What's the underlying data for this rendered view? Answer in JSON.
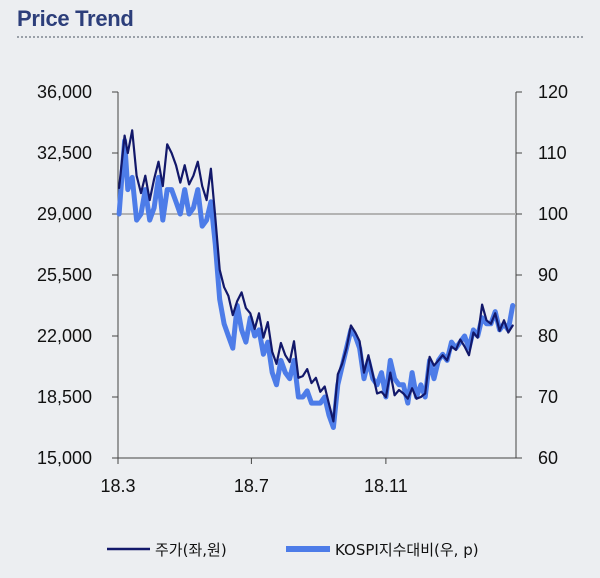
{
  "header": {
    "title": "Price Trend"
  },
  "chart_data": {
    "type": "line",
    "title": "Price Trend",
    "xlabel": "",
    "ylabel": "",
    "x_tick_labels": [
      "18.3",
      "18.7",
      "18.11"
    ],
    "x_tick_months": [
      "2018-03",
      "2018-07",
      "2018-11"
    ],
    "x_range": [
      "2018-03",
      "2019-02"
    ],
    "y_left": {
      "min": 15000,
      "max": 36000,
      "ticks": [
        15000,
        18500,
        22000,
        25500,
        29000,
        32500,
        36000
      ],
      "tick_labels": [
        "15,000",
        "18,500",
        "22,000",
        "25,500",
        "29,000",
        "32,500",
        "36,000"
      ]
    },
    "y_right": {
      "min": 60,
      "max": 120,
      "ticks": [
        60,
        70,
        80,
        90,
        100,
        110,
        120
      ],
      "tick_labels": [
        "60",
        "70",
        "80",
        "90",
        "100",
        "110",
        "120"
      ]
    },
    "reference_line": {
      "axis": "right",
      "value": 100,
      "color": "#b3b3b3"
    },
    "legend_position": "bottom",
    "series": [
      {
        "name": "주가(좌,원)",
        "axis": "left",
        "color": "#12186a",
        "x": [
          "2018-03-02",
          "2018-03-07",
          "2018-03-10",
          "2018-03-14",
          "2018-03-18",
          "2018-03-22",
          "2018-03-26",
          "2018-03-30",
          "2018-04-03",
          "2018-04-07",
          "2018-04-11",
          "2018-04-15",
          "2018-04-19",
          "2018-04-23",
          "2018-04-27",
          "2018-05-01",
          "2018-05-05",
          "2018-05-09",
          "2018-05-13",
          "2018-05-17",
          "2018-05-21",
          "2018-05-25",
          "2018-05-29",
          "2018-06-02",
          "2018-06-06",
          "2018-06-10",
          "2018-06-14",
          "2018-06-18",
          "2018-06-22",
          "2018-06-26",
          "2018-06-30",
          "2018-07-04",
          "2018-07-08",
          "2018-07-12",
          "2018-07-16",
          "2018-07-20",
          "2018-07-24",
          "2018-07-28",
          "2018-08-01",
          "2018-08-05",
          "2018-08-09",
          "2018-08-13",
          "2018-08-17",
          "2018-08-21",
          "2018-08-25",
          "2018-08-29",
          "2018-09-02",
          "2018-09-06",
          "2018-09-10",
          "2018-09-14",
          "2018-09-18",
          "2018-09-22",
          "2018-09-26",
          "2018-09-30",
          "2018-10-04",
          "2018-10-08",
          "2018-10-12",
          "2018-10-16",
          "2018-10-20",
          "2018-10-24",
          "2018-10-28",
          "2018-11-01",
          "2018-11-05",
          "2018-11-09",
          "2018-11-13",
          "2018-11-17",
          "2018-11-21",
          "2018-11-25",
          "2018-11-29",
          "2018-12-03",
          "2018-12-07",
          "2018-12-11",
          "2018-12-15",
          "2018-12-19",
          "2018-12-23",
          "2018-12-27",
          "2018-12-31",
          "2019-01-04",
          "2019-01-08",
          "2019-01-12",
          "2019-01-16",
          "2019-01-20",
          "2019-01-24",
          "2019-01-28",
          "2019-02-01",
          "2019-02-05",
          "2019-02-09",
          "2019-02-13",
          "2019-02-17",
          "2019-02-21",
          "2019-02-25"
        ],
        "values": [
          30500,
          33500,
          32500,
          33800,
          31200,
          30200,
          31200,
          29800,
          31000,
          32000,
          30600,
          33000,
          32500,
          31800,
          30800,
          31800,
          30700,
          31200,
          32000,
          30600,
          29800,
          31600,
          28800,
          25800,
          24800,
          24300,
          23200,
          24000,
          24500,
          23600,
          23300,
          22400,
          23300,
          21900,
          22800,
          21100,
          20400,
          21600,
          20900,
          20500,
          21700,
          19600,
          19700,
          20100,
          19300,
          19600,
          18800,
          19100,
          18100,
          17100,
          19800,
          20400,
          21300,
          22600,
          22200,
          21700,
          19900,
          20900,
          19800,
          18700,
          18800,
          18500,
          19900,
          18600,
          18900,
          18700,
          18400,
          19000,
          18400,
          18500,
          18700,
          20800,
          20300,
          20600,
          20900,
          20600,
          21400,
          21200,
          21800,
          21400,
          20900,
          22200,
          21900,
          23800,
          22900,
          22700,
          23300,
          22300,
          22900,
          22200,
          22600
        ]
      },
      {
        "name": "KOSPI지수대비(우, p)",
        "axis": "right",
        "color": "#4d7ce8",
        "x": [
          "2018-03-02",
          "2018-03-07",
          "2018-03-10",
          "2018-03-14",
          "2018-03-18",
          "2018-03-22",
          "2018-03-26",
          "2018-03-30",
          "2018-04-03",
          "2018-04-07",
          "2018-04-11",
          "2018-04-15",
          "2018-04-19",
          "2018-04-23",
          "2018-04-27",
          "2018-05-01",
          "2018-05-05",
          "2018-05-09",
          "2018-05-13",
          "2018-05-17",
          "2018-05-21",
          "2018-05-25",
          "2018-05-29",
          "2018-06-02",
          "2018-06-06",
          "2018-06-10",
          "2018-06-14",
          "2018-06-18",
          "2018-06-22",
          "2018-06-26",
          "2018-06-30",
          "2018-07-04",
          "2018-07-08",
          "2018-07-12",
          "2018-07-16",
          "2018-07-20",
          "2018-07-24",
          "2018-07-28",
          "2018-08-01",
          "2018-08-05",
          "2018-08-09",
          "2018-08-13",
          "2018-08-17",
          "2018-08-21",
          "2018-08-25",
          "2018-08-29",
          "2018-09-02",
          "2018-09-06",
          "2018-09-10",
          "2018-09-14",
          "2018-09-18",
          "2018-09-22",
          "2018-09-26",
          "2018-09-30",
          "2018-10-04",
          "2018-10-08",
          "2018-10-12",
          "2018-10-16",
          "2018-10-20",
          "2018-10-24",
          "2018-10-28",
          "2018-11-01",
          "2018-11-05",
          "2018-11-09",
          "2018-11-13",
          "2018-11-17",
          "2018-11-21",
          "2018-11-25",
          "2018-11-29",
          "2018-12-03",
          "2018-12-07",
          "2018-12-11",
          "2018-12-15",
          "2018-12-19",
          "2018-12-23",
          "2018-12-27",
          "2018-12-31",
          "2019-01-04",
          "2019-01-08",
          "2019-01-12",
          "2019-01-16",
          "2019-01-20",
          "2019-01-24",
          "2019-01-28",
          "2019-02-01",
          "2019-02-05",
          "2019-02-09",
          "2019-02-13",
          "2019-02-17",
          "2019-02-21",
          "2019-02-25"
        ],
        "values": [
          100,
          112,
          104,
          106,
          99,
          100,
          104,
          99,
          101,
          106,
          99,
          104,
          104,
          102,
          100,
          104,
          100,
          101,
          104,
          98,
          99,
          102,
          95,
          86,
          82,
          80,
          78,
          85,
          81,
          79,
          83,
          80,
          81,
          77,
          79,
          74,
          72,
          76,
          74,
          73,
          76,
          70,
          70,
          71,
          69,
          69,
          69,
          70,
          67,
          65,
          72,
          75,
          78,
          81,
          80,
          78,
          73,
          76,
          73,
          72,
          74,
          70,
          76,
          73,
          72,
          72,
          69,
          74,
          70,
          72,
          70,
          76,
          73,
          76,
          77,
          76,
          79,
          78,
          79,
          80,
          78,
          81,
          80,
          83,
          82,
          82,
          84,
          81,
          82,
          81,
          85
        ]
      }
    ]
  },
  "legend": {
    "items": [
      {
        "label": "주가(좌,원)",
        "color": "#12186a"
      },
      {
        "label": "KOSPI지수대비(우, p)",
        "color": "#4d7ce8"
      }
    ]
  }
}
